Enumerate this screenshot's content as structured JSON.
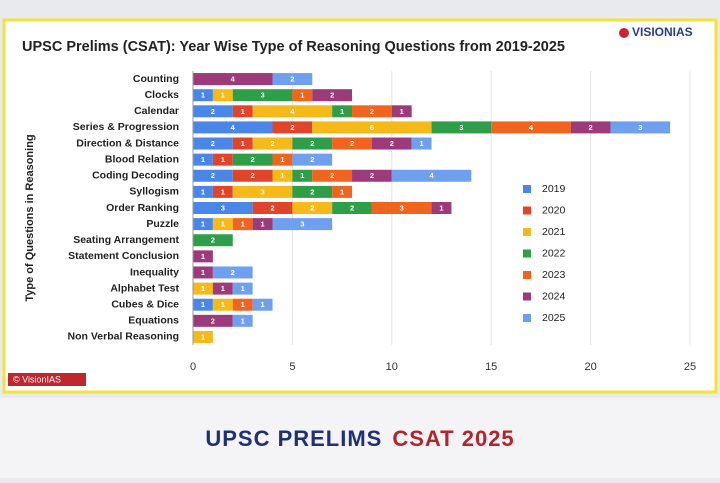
{
  "logo": "VISIONIAS",
  "watermark": "© VisionIAS",
  "banner": {
    "left": "UPSC PRELIMS",
    "right": "CSAT 2025"
  },
  "chart_data": {
    "type": "bar",
    "orientation": "horizontal",
    "stacked": true,
    "title": "UPSC Prelims (CSAT): Year Wise Type of Reasoning Questions from 2019-2025",
    "y_label": "Type of Questions in Reasoning",
    "categories": [
      "Counting",
      "Clocks",
      "Calendar",
      "Series & Progression",
      "Direction & Distance",
      "Blood Relation",
      "Coding Decoding",
      "Syllogism",
      "Order Ranking",
      "Puzzle",
      "Seating Arrangement",
      "Statement Conclusion",
      "Inequality",
      "Alphabet Test",
      "Cubes & Dice",
      "Equations",
      "Non Verbal Reasoning"
    ],
    "series": [
      {
        "name": "2019",
        "color": "#4a86e8",
        "values": [
          0,
          1,
          2,
          4,
          2,
          1,
          2,
          1,
          3,
          1,
          0,
          0,
          0,
          0,
          1,
          0,
          0
        ]
      },
      {
        "name": "2020",
        "color": "#e0452c",
        "values": [
          0,
          0,
          1,
          2,
          1,
          1,
          2,
          1,
          2,
          0,
          0,
          0,
          0,
          0,
          0,
          0,
          0
        ]
      },
      {
        "name": "2021",
        "color": "#f6b91a",
        "values": [
          0,
          1,
          4,
          6,
          2,
          0,
          1,
          3,
          2,
          1,
          0,
          0,
          0,
          1,
          1,
          0,
          1
        ]
      },
      {
        "name": "2022",
        "color": "#2e9e48",
        "values": [
          0,
          3,
          1,
          3,
          2,
          2,
          1,
          2,
          2,
          0,
          2,
          0,
          0,
          0,
          0,
          0,
          0
        ]
      },
      {
        "name": "2023",
        "color": "#f0641e",
        "values": [
          0,
          1,
          2,
          4,
          2,
          1,
          2,
          1,
          3,
          1,
          0,
          0,
          0,
          0,
          1,
          0,
          0
        ]
      },
      {
        "name": "2024",
        "color": "#9c3a7a",
        "values": [
          4,
          2,
          1,
          2,
          2,
          0,
          2,
          0,
          1,
          1,
          0,
          1,
          1,
          1,
          0,
          2,
          0
        ]
      },
      {
        "name": "2025",
        "color": "#6fa0f0",
        "values": [
          2,
          0,
          0,
          3,
          1,
          2,
          4,
          0,
          0,
          3,
          0,
          0,
          2,
          1,
          1,
          1,
          0
        ]
      }
    ],
    "xlim": [
      0,
      25
    ],
    "xticks": [
      0,
      5,
      10,
      15,
      20,
      25
    ],
    "grid": true,
    "legend": "right"
  }
}
